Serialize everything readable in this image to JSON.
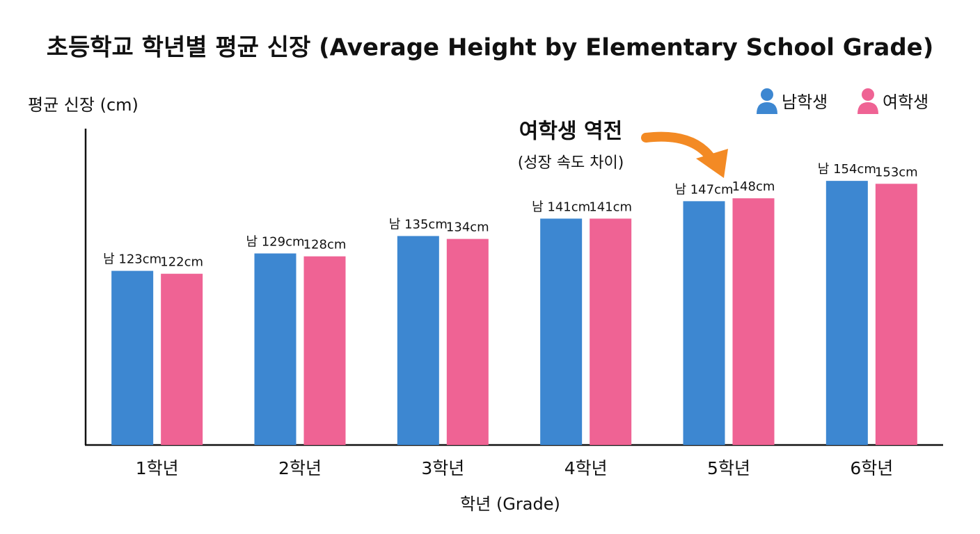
{
  "chart_data": {
    "type": "bar",
    "title": "초등학교 학년별 평균 신장 (Average Height by Elementary School Grade)",
    "y_label": "평균 신장 (cm)",
    "x_label": "학년 (Grade)",
    "categories": [
      "1학년",
      "2학년",
      "3학년",
      "4학년",
      "5학년",
      "6학년"
    ],
    "series": [
      {
        "name": "남학생",
        "color": "#3d87d1",
        "values": [
          123,
          129,
          135,
          141,
          147,
          154
        ],
        "value_labels": [
          "남 123cm",
          "남 129cm",
          "남 135cm",
          "남 141cm",
          "남 147cm",
          "남 154cm"
        ]
      },
      {
        "name": "여학생",
        "color": "#ef6394",
        "values": [
          122,
          128,
          134,
          141,
          148,
          153
        ],
        "value_labels": [
          "122cm",
          "128cm",
          "134cm",
          "141cm",
          "148cm",
          "153cm"
        ]
      }
    ],
    "ylim": [
      63,
      172
    ],
    "legend": "top-right",
    "annotation": {
      "text": "여학생 역전",
      "subtext": "(성장 속도 차이)"
    }
  }
}
